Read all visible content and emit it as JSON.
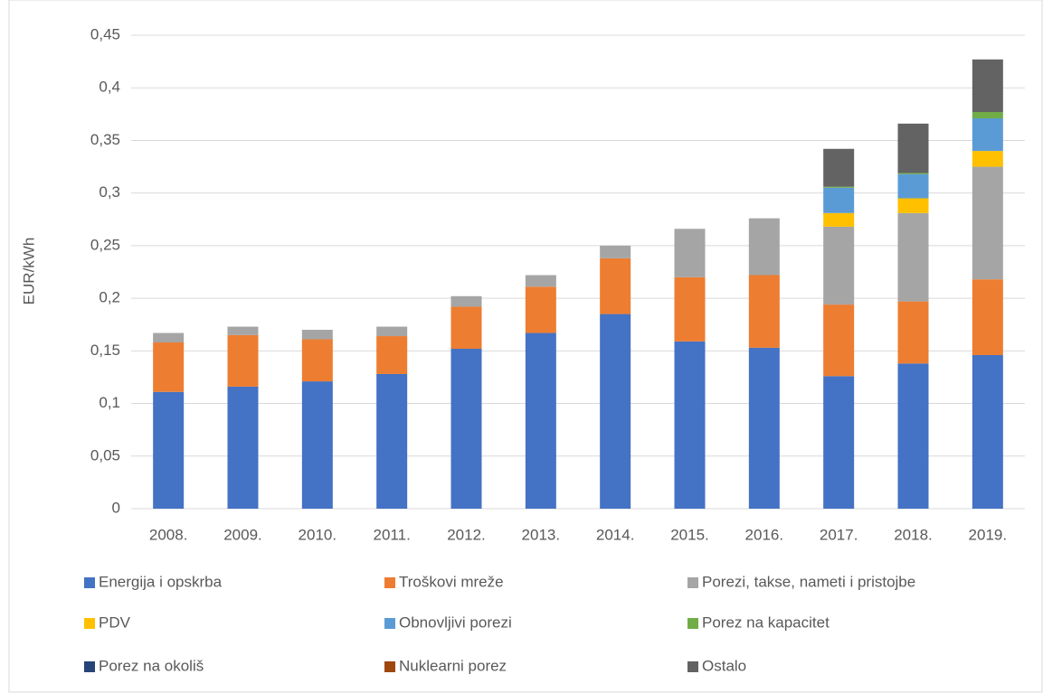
{
  "chart_data": {
    "type": "stacked_bar",
    "y_label": "EUR/kWh",
    "categories": [
      "2008.",
      "2009.",
      "2010.",
      "2011.",
      "2012.",
      "2013.",
      "2014.",
      "2015.",
      "2016.",
      "2017.",
      "2018.",
      "2019."
    ],
    "series": [
      {
        "name": "Energija i opskrba",
        "color": "#4472c4",
        "values": [
          0.111,
          0.116,
          0.121,
          0.128,
          0.152,
          0.167,
          0.185,
          0.159,
          0.153,
          0.126,
          0.138,
          0.146
        ]
      },
      {
        "name": "Troškovi mreže",
        "color": "#ed7d31",
        "values": [
          0.047,
          0.049,
          0.04,
          0.036,
          0.04,
          0.044,
          0.053,
          0.061,
          0.069,
          0.068,
          0.059,
          0.072
        ]
      },
      {
        "name": "Porezi, takse, nameti i pristojbe",
        "color": "#a5a5a5",
        "values": [
          0.009,
          0.008,
          0.009,
          0.009,
          0.01,
          0.011,
          0.012,
          0.046,
          0.054,
          0.074,
          0.084,
          0.107
        ]
      },
      {
        "name": "PDV",
        "color": "#ffc000",
        "values": [
          0,
          0,
          0,
          0,
          0,
          0,
          0,
          0,
          0,
          0.013,
          0.014,
          0.015
        ]
      },
      {
        "name": "Obnovljivi porezi",
        "color": "#5b9bd5",
        "values": [
          0,
          0,
          0,
          0,
          0,
          0,
          0,
          0,
          0,
          0.024,
          0.023,
          0.031
        ]
      },
      {
        "name": "Porez na kapacitet",
        "color": "#70ad47",
        "values": [
          0,
          0,
          0,
          0,
          0,
          0,
          0,
          0,
          0,
          0.001,
          0.001,
          0.006
        ]
      },
      {
        "name": "Porez na okoliš",
        "color": "#264478",
        "values": [
          0,
          0,
          0,
          0,
          0,
          0,
          0,
          0,
          0,
          0,
          0,
          0
        ]
      },
      {
        "name": "Nuklearni porez",
        "color": "#9e480e",
        "values": [
          0,
          0,
          0,
          0,
          0,
          0,
          0,
          0,
          0,
          0,
          0,
          0
        ]
      },
      {
        "name": "Ostalo",
        "color": "#636363",
        "values": [
          0,
          0,
          0,
          0,
          0,
          0,
          0,
          0,
          0,
          0.036,
          0.047,
          0.05
        ]
      }
    ],
    "ylim": [
      0,
      0.45
    ],
    "yticks": [
      0,
      {
        "value": 0.05,
        "label": "0,05"
      },
      {
        "value": 0.1,
        "label": "0,1"
      },
      {
        "value": 0.15,
        "label": "0,15"
      },
      {
        "value": 0.2,
        "label": "0,2"
      },
      {
        "value": 0.25,
        "label": "0,25"
      },
      {
        "value": 0.3,
        "label": "0,3"
      },
      {
        "value": 0.35,
        "label": "0,35"
      },
      {
        "value": 0.4,
        "label": "0,4"
      },
      {
        "value": 0.45,
        "label": "0,45"
      }
    ],
    "grid": true,
    "legend": "bottom"
  }
}
